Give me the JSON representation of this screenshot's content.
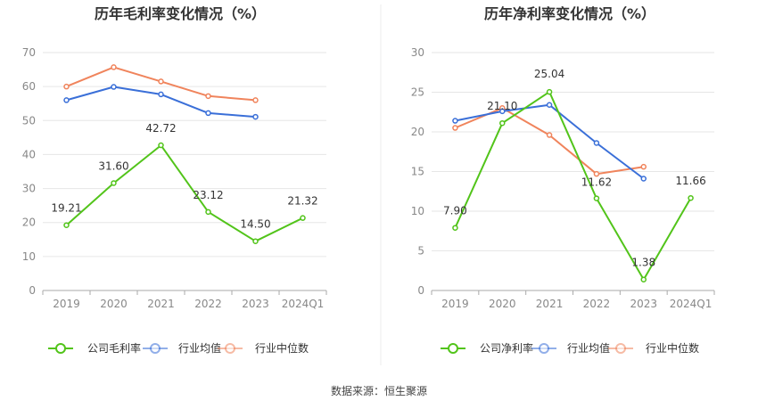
{
  "footer": {
    "source_label": "数据来源：",
    "source_value": "恒生聚源"
  },
  "colors": {
    "company": "#52c41a",
    "industry_avg": "#3a6fd8",
    "industry_median": "#f0845c",
    "axis_text": "#888888",
    "grid": "#e6e6e6"
  },
  "chart_data": [
    {
      "type": "line",
      "title": "历年毛利率变化情况（%）",
      "categories": [
        "2019",
        "2020",
        "2021",
        "2022",
        "2023",
        "2024Q1"
      ],
      "ylim": [
        0,
        70
      ],
      "yticks": [
        0,
        10,
        20,
        30,
        40,
        50,
        60,
        70
      ],
      "grid": true,
      "legend_position": "bottom",
      "series": [
        {
          "name": "公司毛利率",
          "key": "company",
          "values": [
            19.21,
            31.6,
            42.72,
            23.12,
            14.5,
            21.32
          ],
          "labels": [
            "19.21",
            "31.60",
            "42.72",
            "23.12",
            "14.50",
            "21.32"
          ]
        },
        {
          "name": "行业均值",
          "key": "industry_avg",
          "values": [
            56.0,
            59.9,
            57.7,
            52.2,
            51.1,
            null
          ]
        },
        {
          "name": "行业中位数",
          "key": "industry_median",
          "values": [
            60.0,
            65.7,
            61.5,
            57.2,
            56.0,
            null
          ]
        }
      ]
    },
    {
      "type": "line",
      "title": "历年净利率变化情况（%）",
      "categories": [
        "2019",
        "2020",
        "2021",
        "2022",
        "2023",
        "2024Q1"
      ],
      "ylim": [
        0,
        30
      ],
      "yticks": [
        0,
        5,
        10,
        15,
        20,
        25,
        30
      ],
      "grid": true,
      "legend_position": "bottom",
      "series": [
        {
          "name": "公司净利率",
          "key": "company",
          "values": [
            7.9,
            21.1,
            25.04,
            11.62,
            1.38,
            11.66
          ],
          "labels": [
            "7.90",
            "21.10",
            "25.04",
            "11.62",
            "1.38",
            "11.66"
          ]
        },
        {
          "name": "行业均值",
          "key": "industry_avg",
          "values": [
            21.4,
            22.6,
            23.4,
            18.6,
            14.1,
            null
          ]
        },
        {
          "name": "行业中位数",
          "key": "industry_median",
          "values": [
            20.5,
            23.0,
            19.6,
            14.7,
            15.6,
            null
          ]
        }
      ]
    }
  ]
}
